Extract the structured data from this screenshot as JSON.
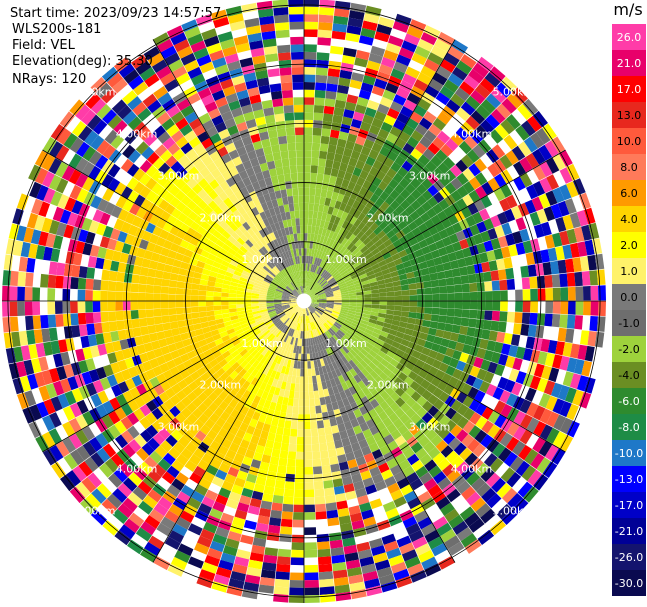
{
  "header": {
    "start_time": "Start time: 2023/09/23 14:57:57",
    "instrument": "WLS200s-181",
    "field": "Field: VEL",
    "elevation": "Elevation(deg): 35.30",
    "nrays": "NRays: 120"
  },
  "colorbar": {
    "unit": "m/s",
    "ticks": [
      "26.0",
      "21.0",
      "17.0",
      "13.0",
      "10.0",
      "8.0",
      "6.0",
      "4.0",
      "2.0",
      "1.0",
      "0.0",
      "-1.0",
      "-2.0",
      "-4.0",
      "-6.0",
      "-8.0",
      "-10.0",
      "-13.0",
      "-17.0",
      "-21.0",
      "-26.0",
      "-30.0"
    ],
    "colors": [
      "#ff3ca8",
      "#e8006a",
      "#ff0000",
      "#e8281e",
      "#ff5a3c",
      "#ff7a5a",
      "#ff9a00",
      "#ffd400",
      "#ffff00",
      "#fff26a",
      "#7a7a7a",
      "#6e6e6e",
      "#9ed23c",
      "#6b8e23",
      "#2e8b2e",
      "#1e8c46",
      "#1e78c8",
      "#0000ff",
      "#0000c8",
      "#000096",
      "#14146e",
      "#0a0a50"
    ]
  },
  "chart_data": {
    "type": "heatmap",
    "projection": "polar-ppi",
    "field": "VEL",
    "nrays": 120,
    "range_rings_km": [
      1.0,
      2.0,
      3.0,
      4.0,
      5.0
    ],
    "ring_labels": [
      "1.00km",
      "2.00km",
      "3.00km",
      "4.00km",
      "5.00km"
    ],
    "max_range_km": 5.1,
    "legend": "right",
    "colorbar_range": [
      -30.0,
      26.0
    ]
  }
}
